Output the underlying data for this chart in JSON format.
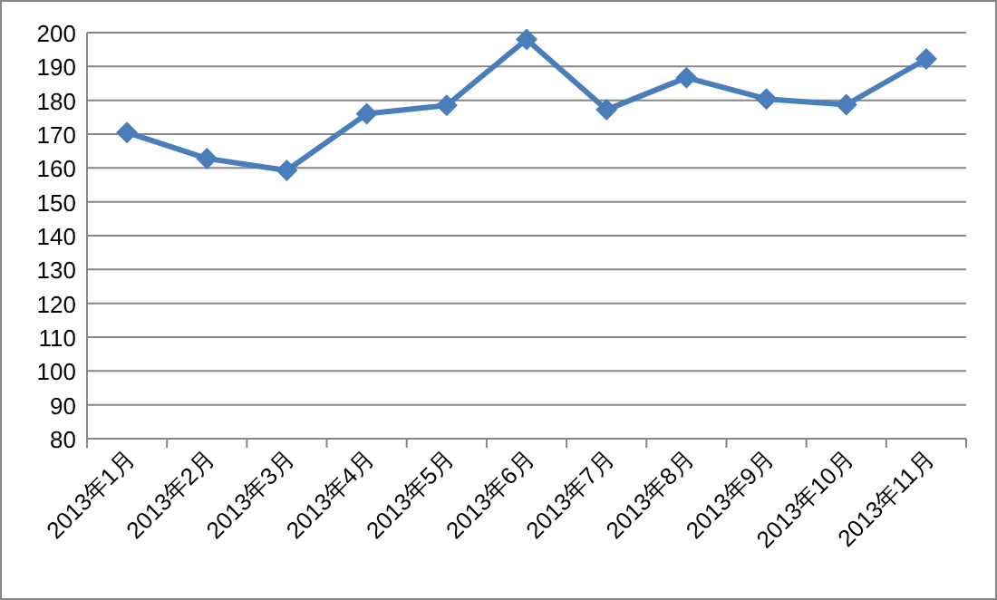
{
  "chart_data": {
    "type": "line",
    "categories": [
      "2013年1月",
      "2013年2月",
      "2013年3月",
      "2013年4月",
      "2013年5月",
      "2013年6月",
      "2013年7月",
      "2013年8月",
      "2013年9月",
      "2013年10月",
      "2013年11月"
    ],
    "series": [
      {
        "color": "#4a7ebb",
        "values": [
          170.5,
          162.8,
          159.3,
          176,
          178.5,
          198,
          177.2,
          186.7,
          180.4,
          178.7,
          192.2
        ]
      }
    ],
    "ylim": [
      80,
      200
    ],
    "yticks": [
      80,
      90,
      100,
      110,
      120,
      130,
      140,
      150,
      160,
      170,
      180,
      190,
      200
    ],
    "grid": "y",
    "marker": "diamond",
    "line_style": "solid"
  }
}
